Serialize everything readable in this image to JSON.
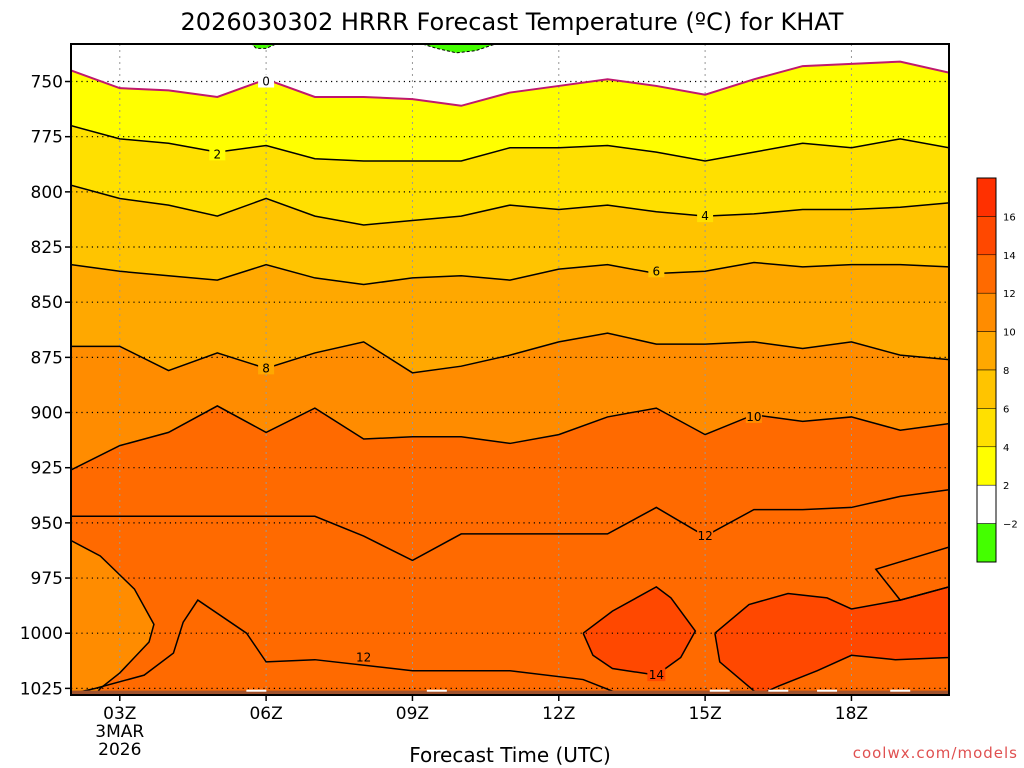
{
  "chart_data": {
    "type": "contour",
    "title": "2026030302 HRRR Forecast Temperature (ºC) for KHAT",
    "xlabel": "Forecast Time (UTC)",
    "credit": "coolwx.com/models",
    "x_ticks": [
      {
        "label": "03Z",
        "sub": [
          "3MAR",
          "2026"
        ],
        "hour": 3
      },
      {
        "label": "06Z",
        "sub": [],
        "hour": 6
      },
      {
        "label": "09Z",
        "sub": [],
        "hour": 9
      },
      {
        "label": "12Z",
        "sub": [],
        "hour": 12
      },
      {
        "label": "15Z",
        "sub": [],
        "hour": 15
      },
      {
        "label": "18Z",
        "sub": [],
        "hour": 18
      }
    ],
    "y_ticks": [
      750,
      775,
      800,
      825,
      850,
      875,
      900,
      925,
      950,
      975,
      1000,
      1025
    ],
    "xlim": [
      2,
      20
    ],
    "ylim": [
      733,
      1028
    ],
    "y_axis": "pressure (hPa), inverted",
    "hours": [
      2,
      3,
      4,
      5,
      6,
      7,
      8,
      9,
      10,
      11,
      12,
      13,
      14,
      15,
      16,
      17,
      18,
      19,
      20
    ],
    "fill_colors": [
      {
        "level": -2,
        "color": "#44ff00"
      },
      {
        "level": 0,
        "color": "#ffffff"
      },
      {
        "level": 2,
        "color": "#ffff00"
      },
      {
        "level": 4,
        "color": "#ffe000"
      },
      {
        "level": 6,
        "color": "#ffc400"
      },
      {
        "level": 8,
        "color": "#ffa800"
      },
      {
        "level": 10,
        "color": "#ff8c00"
      },
      {
        "level": 12,
        "color": "#ff6a00"
      },
      {
        "level": 14,
        "color": "#ff4800"
      },
      {
        "level": 16,
        "color": "#ff3000"
      }
    ],
    "colorbar_labels": [
      "16",
      "14",
      "12",
      "10",
      "8",
      "6",
      "4",
      "2",
      "−2"
    ],
    "ground_color": "#a0522d",
    "contours": [
      {
        "value": 0,
        "label": "0",
        "color": "#c0186e",
        "pressure": [
          745,
          753,
          754,
          757,
          749,
          757,
          757,
          758,
          761,
          755,
          752,
          749,
          752,
          756,
          749,
          743,
          742,
          741,
          746
        ],
        "label_at": {
          "hour": 6,
          "pressure": 750
        }
      },
      {
        "value": 2,
        "label": "2",
        "color": "#000000",
        "pressure": [
          770,
          776,
          778,
          782,
          779,
          785,
          786,
          786,
          786,
          780,
          780,
          779,
          782,
          786,
          782,
          778,
          780,
          776,
          780
        ],
        "label_at": {
          "hour": 5,
          "pressure": 783
        }
      },
      {
        "value": 4,
        "label": "4",
        "color": "#000000",
        "pressure": [
          797,
          803,
          806,
          811,
          803,
          811,
          815,
          813,
          811,
          806,
          808,
          806,
          809,
          811,
          810,
          808,
          808,
          807,
          805
        ],
        "label_at": {
          "hour": 15,
          "pressure": 811
        }
      },
      {
        "value": 6,
        "label": "6",
        "color": "#000000",
        "pressure": [
          833,
          836,
          838,
          840,
          833,
          839,
          842,
          839,
          838,
          840,
          835,
          833,
          837,
          836,
          832,
          834,
          833,
          833,
          834
        ],
        "label_at": {
          "hour": 14,
          "pressure": 836
        }
      },
      {
        "value": 8,
        "label": "8",
        "color": "#000000",
        "pressure": [
          870,
          870,
          881,
          873,
          880,
          873,
          868,
          882,
          879,
          874,
          868,
          864,
          869,
          869,
          868,
          871,
          868,
          874,
          876
        ],
        "label_at": {
          "hour": 6,
          "pressure": 880
        }
      },
      {
        "value": 10,
        "label": "10",
        "color": "#000000",
        "pressure": [
          926,
          915,
          909,
          897,
          909,
          898,
          912,
          911,
          911,
          914,
          910,
          902,
          898,
          910,
          901,
          904,
          902,
          908,
          905
        ],
        "label_at": {
          "hour": 16,
          "pressure": 902
        }
      },
      {
        "value": 12,
        "label": "12",
        "color": "#000000",
        "pressure": [
          947,
          947,
          947,
          947,
          947,
          947,
          956,
          967,
          955,
          955,
          955,
          955,
          943,
          956,
          944,
          944,
          943,
          938,
          935
        ],
        "label_at": {
          "hour": 15,
          "pressure": 956
        }
      }
    ],
    "inner_contours": [
      {
        "value": 12,
        "label": "12",
        "label_at": {
          "hour": 8,
          "pressure": 1011
        },
        "points": [
          [
            1.9,
            1028
          ],
          [
            2.5,
            1025
          ],
          [
            3.5,
            1019
          ],
          [
            4.1,
            1009
          ],
          [
            4.3,
            995
          ],
          [
            4.6,
            985
          ],
          [
            5.6,
            1000
          ],
          [
            6.0,
            1013
          ],
          [
            7.0,
            1012
          ],
          [
            9.0,
            1017
          ],
          [
            11.0,
            1017
          ],
          [
            12.5,
            1021
          ],
          [
            13.3,
            1028
          ]
        ]
      },
      {
        "value": 14,
        "label": "14",
        "label_at": {
          "hour": 14,
          "pressure": 1019
        },
        "points": [
          [
            12.5,
            1000
          ],
          [
            13.1,
            990
          ],
          [
            14.0,
            979
          ],
          [
            14.3,
            984
          ],
          [
            14.8,
            999
          ],
          [
            14.5,
            1011
          ],
          [
            14.0,
            1019
          ],
          [
            13.1,
            1016
          ],
          [
            12.7,
            1010
          ],
          [
            12.5,
            1000
          ]
        ]
      },
      {
        "value": 14,
        "label": "",
        "label_at": null,
        "points": [
          [
            15.2,
            1000
          ],
          [
            15.9,
            987
          ],
          [
            16.7,
            982
          ],
          [
            17.5,
            984
          ],
          [
            18.0,
            989
          ],
          [
            19.0,
            985
          ],
          [
            20.0,
            979
          ],
          [
            20.0,
            1011
          ],
          [
            18.9,
            1012
          ],
          [
            18.0,
            1010
          ],
          [
            17.3,
            1017
          ],
          [
            16.5,
            1024
          ],
          [
            16.1,
            1028
          ],
          [
            15.3,
            1013
          ],
          [
            15.2,
            1000
          ]
        ]
      },
      {
        "value": 12,
        "label": "",
        "label_at": null,
        "points": [
          [
            20.0,
            961
          ],
          [
            18.5,
            971
          ],
          [
            19.0,
            985
          ],
          [
            20.0,
            979
          ]
        ]
      }
    ],
    "top_patches": [
      {
        "color": "#44ff00",
        "points": [
          [
            5.7,
            733
          ],
          [
            6.2,
            733
          ],
          [
            6.0,
            735
          ],
          [
            5.8,
            735
          ]
        ]
      },
      {
        "color": "#44ff00",
        "points": [
          [
            9.2,
            733
          ],
          [
            10.7,
            733
          ],
          [
            10.3,
            736
          ],
          [
            9.9,
            737
          ],
          [
            9.5,
            735
          ]
        ]
      }
    ],
    "white_marks": [
      [
        5.8,
        1025
      ],
      [
        9.5,
        1025
      ],
      [
        15.3,
        1025
      ],
      [
        16.5,
        1025
      ],
      [
        17.5,
        1025
      ],
      [
        19.0,
        1025
      ]
    ]
  }
}
